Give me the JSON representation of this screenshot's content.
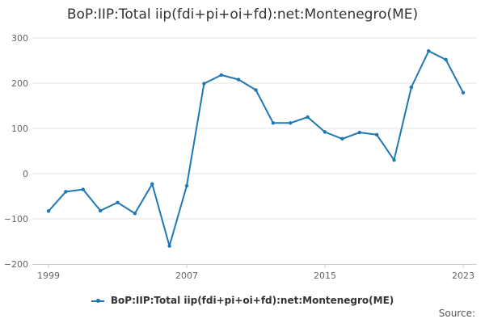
{
  "chart_data": {
    "type": "line",
    "title": "BoP:IIP:Total iip(fdi+pi+oi+fd):net:Montenegro(ME)",
    "xlabel": "",
    "ylabel": "",
    "ylim": [
      -200,
      300
    ],
    "xlim": [
      1999,
      2023
    ],
    "y_ticks": [
      300,
      200,
      100,
      0,
      -100,
      -200
    ],
    "y_tick_labels": [
      "300",
      "200",
      "100",
      "0",
      "−100",
      "−200"
    ],
    "x_ticks": [
      1999,
      2007,
      2015,
      2023
    ],
    "x_tick_labels": [
      "1999",
      "2007",
      "2015",
      "2023"
    ],
    "grid": "horizontal",
    "legend_position": "bottom",
    "color": "#1f77b4",
    "series": [
      {
        "name": "BoP:IIP:Total iip(fdi+pi+oi+fd):net:Montenegro(ME)",
        "x": [
          1999,
          2000,
          2001,
          2002,
          2003,
          2004,
          2005,
          2006,
          2007,
          2008,
          2009,
          2010,
          2011,
          2012,
          2013,
          2014,
          2015,
          2016,
          2017,
          2018,
          2019,
          2020,
          2021,
          2022,
          2023
        ],
        "values": [
          -83,
          -40,
          -35,
          -82,
          -64,
          -88,
          -23,
          -160,
          -27,
          199,
          218,
          208,
          185,
          112,
          112,
          125,
          92,
          77,
          91,
          86,
          30,
          191,
          271,
          252,
          179
        ]
      }
    ]
  },
  "source_label": "Source:"
}
